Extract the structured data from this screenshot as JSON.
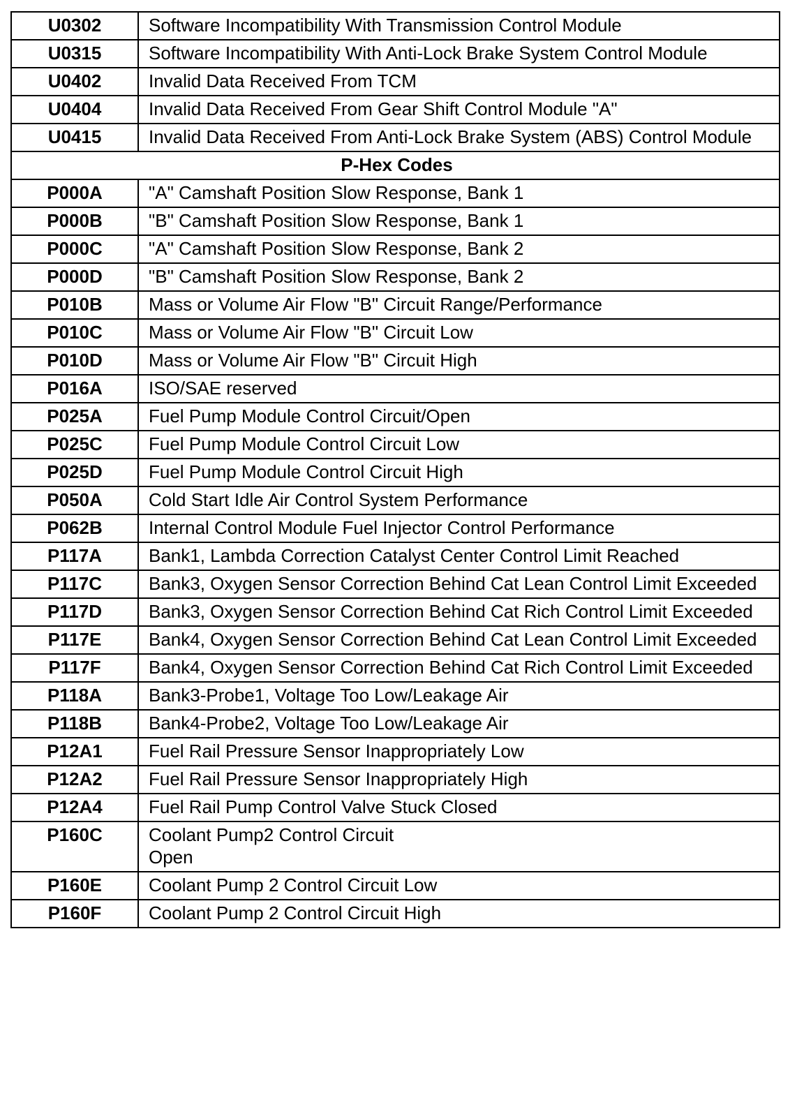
{
  "rows": [
    {
      "code": "U0302",
      "desc": "Software Incompatibility With Transmission Control Module"
    },
    {
      "code": "U0315",
      "desc": "Software Incompatibility With Anti-Lock Brake System Control Module"
    },
    {
      "code": "U0402",
      "desc": "Invalid Data Received From TCM"
    },
    {
      "code": "U0404",
      "desc": "Invalid Data Received From Gear Shift Control Module \"A\""
    },
    {
      "code": "U0415",
      "desc": "Invalid Data Received From Anti-Lock Brake System (ABS) Control Module"
    },
    {
      "section": "P-Hex Codes"
    },
    {
      "code": "P000A",
      "desc": "\"A\" Camshaft Position Slow Response, Bank 1"
    },
    {
      "code": "P000B",
      "desc": "\"B\" Camshaft Position Slow Response, Bank 1"
    },
    {
      "code": "P000C",
      "desc": "\"A\" Camshaft Position Slow Response, Bank 2"
    },
    {
      "code": "P000D",
      "desc": "\"B\" Camshaft Position Slow Response, Bank 2"
    },
    {
      "code": "P010B",
      "desc": "Mass or Volume Air Flow \"B\" Circuit Range/Performance"
    },
    {
      "code": "P010C",
      "desc": "Mass or Volume Air Flow \"B\" Circuit Low"
    },
    {
      "code": "P010D",
      "desc": "Mass or Volume Air Flow \"B\" Circuit High"
    },
    {
      "code": "P016A",
      "desc": "ISO/SAE reserved"
    },
    {
      "code": "P025A",
      "desc": "Fuel Pump Module Control Circuit/Open"
    },
    {
      "code": "P025C",
      "desc": "Fuel Pump Module Control Circuit Low"
    },
    {
      "code": "P025D",
      "desc": "Fuel Pump Module Control Circuit High"
    },
    {
      "code": "P050A",
      "desc": "Cold Start Idle Air Control System Performance"
    },
    {
      "code": "P062B",
      "desc": "Internal Control Module Fuel Injector Control Performance"
    },
    {
      "code": "P117A",
      "desc": "Bank1, Lambda Correction Catalyst Center Control Limit Reached"
    },
    {
      "code": "P117C",
      "desc": "Bank3, Oxygen Sensor Correction Behind Cat Lean Control Limit Exceeded"
    },
    {
      "code": "P117D",
      "desc": "Bank3, Oxygen Sensor Correction Behind Cat Rich Control Limit Exceeded"
    },
    {
      "code": "P117E",
      "desc": "Bank4, Oxygen Sensor Correction Behind Cat Lean Control Limit Exceeded"
    },
    {
      "code": "P117F",
      "desc": "Bank4, Oxygen Sensor Correction Behind Cat Rich Control Limit Exceeded"
    },
    {
      "code": "P118A",
      "desc": "Bank3-Probe1, Voltage Too Low/Leakage Air"
    },
    {
      "code": "P118B",
      "desc": "Bank4-Probe2, Voltage Too Low/Leakage Air"
    },
    {
      "code": "P12A1",
      "desc": "Fuel Rail Pressure Sensor Inappropriately Low"
    },
    {
      "code": "P12A2",
      "desc": "Fuel Rail Pressure Sensor Inappropriately High"
    },
    {
      "code": "P12A4",
      "desc": "Fuel Rail Pump Control Valve Stuck Closed"
    },
    {
      "code": "P160C",
      "desc": "Coolant Pump2  Control Circuit\nOpen"
    },
    {
      "code": "P160E",
      "desc": "Coolant Pump 2 Control Circuit Low"
    },
    {
      "code": "P160F",
      "desc": "Coolant Pump 2 Control Circuit High"
    }
  ]
}
